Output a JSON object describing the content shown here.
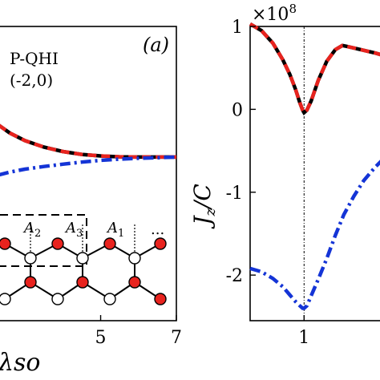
{
  "chart_data": [
    {
      "panel_label": "(a)",
      "type": "line",
      "xlabel": "λso",
      "x_ticks": [
        5,
        7
      ],
      "xlim": [
        2.3,
        7
      ],
      "ylim": [
        0,
        1
      ],
      "annotations": [
        "P-QHI",
        "(-2,0)"
      ],
      "inset_site_labels": [
        "A2",
        "A3",
        "A1",
        "..."
      ],
      "series": [
        {
          "style": "solid",
          "color": "#000000",
          "x": [
            2.3,
            2.6,
            3.0,
            3.5,
            4.0,
            4.5,
            5.0,
            5.5,
            6.0,
            6.5,
            7.0
          ],
          "y": [
            0.665,
            0.638,
            0.612,
            0.59,
            0.575,
            0.565,
            0.56,
            0.557,
            0.556,
            0.556,
            0.556
          ]
        },
        {
          "style": "dashed",
          "color": "#e8231e",
          "x": [
            2.3,
            2.6,
            3.0,
            3.5,
            4.0,
            4.5,
            5.0,
            5.5,
            6.0,
            6.5,
            7.0
          ],
          "y": [
            0.665,
            0.638,
            0.612,
            0.59,
            0.575,
            0.565,
            0.56,
            0.557,
            0.556,
            0.556,
            0.556
          ]
        },
        {
          "style": "dashdot",
          "color": "#1434d6",
          "x": [
            2.3,
            2.6,
            3.0,
            3.5,
            4.0,
            4.5,
            5.0,
            5.5,
            6.0,
            6.5,
            7.0
          ],
          "y": [
            0.495,
            0.505,
            0.515,
            0.524,
            0.532,
            0.539,
            0.545,
            0.549,
            0.552,
            0.554,
            0.556
          ]
        }
      ]
    },
    {
      "type": "line",
      "ylabel": "Jz/C",
      "y_multiplier": "×10^8",
      "x_ticks": [
        1
      ],
      "y_ticks": [
        1,
        0,
        -1,
        -2
      ],
      "xlim": [
        0.62,
        1.58
      ],
      "ylim": [
        -2.55,
        1.0
      ],
      "vline_x": 1,
      "series": [
        {
          "style": "solid",
          "color": "#000000",
          "x": [
            0.62,
            0.7,
            0.78,
            0.85,
            0.9,
            0.94,
            0.97,
            0.99,
            1.0,
            1.02,
            1.05,
            1.1,
            1.16,
            1.22,
            1.27,
            1.3,
            1.4,
            1.5,
            1.58
          ],
          "y": [
            1.03,
            0.95,
            0.8,
            0.6,
            0.42,
            0.24,
            0.08,
            -0.01,
            -0.04,
            -0.01,
            0.1,
            0.35,
            0.58,
            0.72,
            0.77,
            0.76,
            0.72,
            0.68,
            0.64
          ]
        },
        {
          "style": "dashed",
          "color": "#e8231e",
          "x": [
            0.62,
            0.7,
            0.78,
            0.85,
            0.9,
            0.94,
            0.97,
            0.99,
            1.0,
            1.02,
            1.05,
            1.1,
            1.16,
            1.22,
            1.27,
            1.3,
            1.4,
            1.5,
            1.58
          ],
          "y": [
            1.03,
            0.95,
            0.8,
            0.6,
            0.42,
            0.24,
            0.08,
            -0.01,
            -0.04,
            -0.01,
            0.1,
            0.35,
            0.58,
            0.72,
            0.77,
            0.76,
            0.72,
            0.68,
            0.64
          ]
        },
        {
          "style": "dashdot",
          "color": "#1434d6",
          "x": [
            0.62,
            0.7,
            0.78,
            0.85,
            0.9,
            0.94,
            0.97,
            0.99,
            1.0,
            1.02,
            1.05,
            1.1,
            1.16,
            1.22,
            1.28,
            1.35,
            1.42,
            1.5,
            1.58
          ],
          "y": [
            -1.92,
            -1.96,
            -2.04,
            -2.14,
            -2.24,
            -2.32,
            -2.37,
            -2.4,
            -2.4,
            -2.37,
            -2.25,
            -2.05,
            -1.8,
            -1.52,
            -1.27,
            -1.05,
            -0.86,
            -0.7,
            -0.56
          ]
        }
      ]
    }
  ]
}
